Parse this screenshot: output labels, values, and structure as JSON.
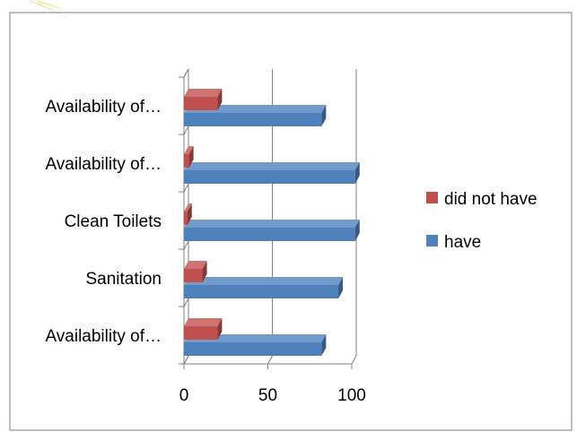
{
  "chart_data": {
    "type": "bar",
    "orientation": "horizontal",
    "style": "3d",
    "categories": [
      "Availability of…",
      "Sanitation",
      "Clean Toilets",
      "Availability of…",
      "Availability of…"
    ],
    "series": [
      {
        "name": "have",
        "color": "#4f81bd",
        "values": [
          82,
          92,
          102,
          102,
          82
        ]
      },
      {
        "name": "did not have",
        "color": "#c0504d",
        "values": [
          20,
          11,
          2,
          3,
          20
        ]
      }
    ],
    "xticks": [
      "0",
      "50",
      "100"
    ],
    "xlim": [
      0,
      100
    ],
    "grid": "vertical",
    "legend": "right",
    "title": "",
    "xlabel": "",
    "ylabel": ""
  },
  "colors": {
    "frame": "#7f7f7f",
    "grid": "#808080",
    "watermark_green": "#a6e36b"
  }
}
